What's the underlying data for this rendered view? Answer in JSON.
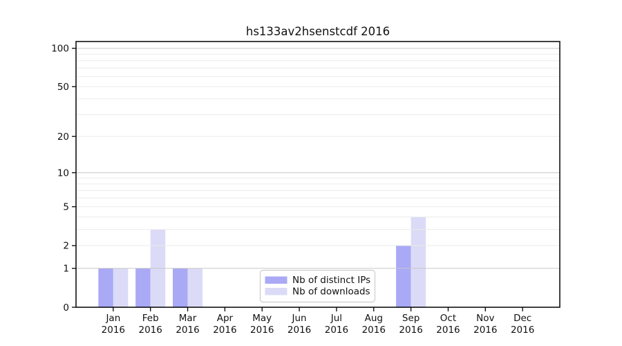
{
  "chart_data": {
    "type": "bar",
    "title": "hs133av2hsenstcdf 2016",
    "x_tick_months": [
      "Jan",
      "Feb",
      "Mar",
      "Apr",
      "May",
      "Jun",
      "Jul",
      "Aug",
      "Sep",
      "Oct",
      "Nov",
      "Dec"
    ],
    "x_tick_year": "2016",
    "series": [
      {
        "name": "Nb of distinct IPs",
        "key": "distinct-ips",
        "color": "#a9a9f6",
        "values": [
          1,
          1,
          1,
          0,
          0,
          0,
          0,
          0,
          2,
          0,
          0,
          0
        ]
      },
      {
        "name": "Nb of downloads",
        "key": "downloads",
        "color": "#dbdbf8",
        "values": [
          1,
          3,
          1,
          0,
          0,
          0,
          0,
          0,
          4,
          0,
          0,
          0
        ]
      }
    ],
    "yscale": "log1p",
    "ylim": [
      0,
      113
    ],
    "yticks": [
      0,
      1,
      2,
      5,
      10,
      20,
      50,
      100
    ],
    "grid": {
      "major_values": [
        1,
        10,
        100
      ],
      "minor_values": [
        2,
        3,
        4,
        5,
        6,
        7,
        8,
        9,
        20,
        30,
        40,
        50,
        60,
        70,
        80,
        90
      ],
      "major_color": "#c8c8c8",
      "minor_color": "#ebebeb"
    },
    "legend": {
      "position": "bottom-center",
      "entries": [
        {
          "label": "Nb of distinct IPs",
          "color": "#a9a9f6"
        },
        {
          "label": "Nb of downloads",
          "color": "#dbdbf8"
        }
      ],
      "border_color": "#cccccc",
      "background": "#ffffff"
    },
    "axis_color": "#000000",
    "text_color": "#111111",
    "background": "#ffffff"
  }
}
